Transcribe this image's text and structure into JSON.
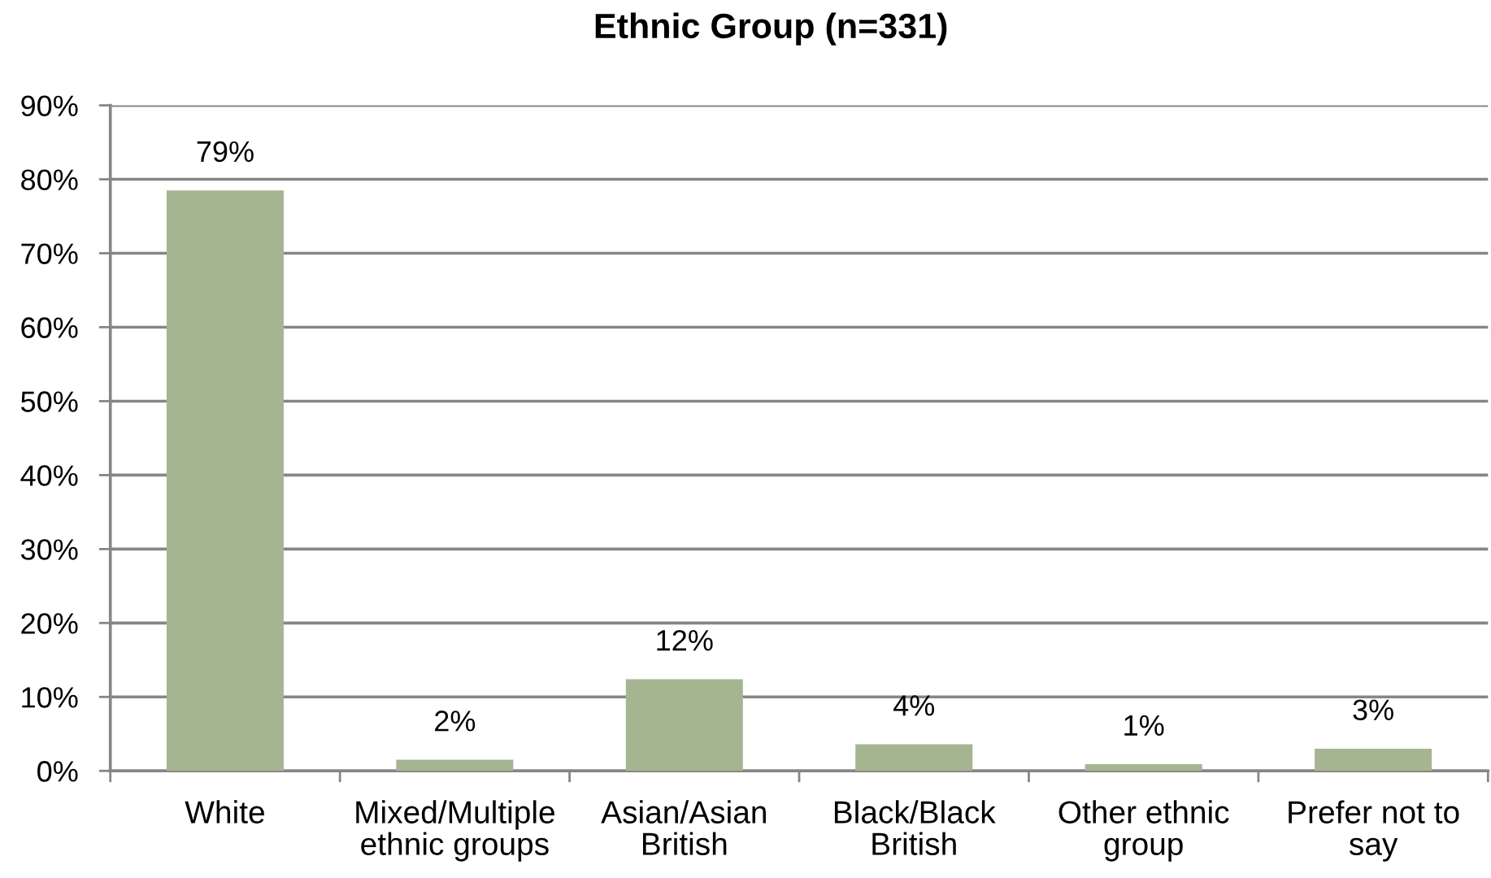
{
  "chart_data": {
    "type": "bar",
    "title": "Ethnic Group (n=331)",
    "categories": [
      "White",
      "Mixed/Multiple\nethnic groups",
      "Asian/Asian\nBritish",
      "Black/Black\nBritish",
      "Other ethnic\ngroup",
      "Prefer not to\nsay"
    ],
    "values": [
      78.5,
      1.5,
      12.4,
      3.6,
      0.9,
      3.0
    ],
    "color": "#a6b591",
    "value_labels": [
      "79%",
      "2%",
      "12%",
      "4%",
      "1%",
      "3%"
    ],
    "ylim": [
      0,
      90
    ],
    "yticks": [
      {
        "value": 0,
        "label": "0%"
      },
      {
        "value": 10,
        "label": "10%"
      },
      {
        "value": 20,
        "label": "20%"
      },
      {
        "value": 30,
        "label": "30%"
      },
      {
        "value": 40,
        "label": "40%"
      },
      {
        "value": 50,
        "label": "50%"
      },
      {
        "value": 60,
        "label": "60%"
      },
      {
        "value": 70,
        "label": "70%"
      },
      {
        "value": 80,
        "label": "80%"
      },
      {
        "value": 90,
        "label": "90%"
      }
    ],
    "grid": "y",
    "legend": false
  }
}
